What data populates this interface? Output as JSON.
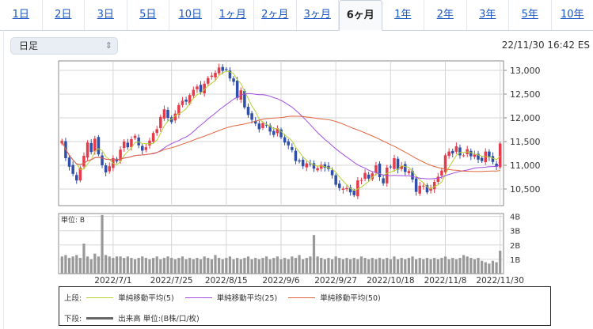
{
  "tabs": [
    {
      "label": "1日",
      "active": false
    },
    {
      "label": "2日",
      "active": false
    },
    {
      "label": "3日",
      "active": false
    },
    {
      "label": "5日",
      "active": false
    },
    {
      "label": "10日",
      "active": false
    },
    {
      "label": "1ヶ月",
      "active": false
    },
    {
      "label": "2ヶ月",
      "active": false
    },
    {
      "label": "3ヶ月",
      "active": false
    },
    {
      "label": "6ヶ月",
      "active": true
    },
    {
      "label": "1年",
      "active": false
    },
    {
      "label": "2年",
      "active": false
    },
    {
      "label": "3年",
      "active": false
    },
    {
      "label": "5年",
      "active": false
    },
    {
      "label": "10年",
      "active": false
    }
  ],
  "period_select": {
    "value": "日足"
  },
  "timestamp": "22/11/30 16:42 ES",
  "legend": {
    "upper_label": "上段:",
    "lower_label": "下段:",
    "ma5": "単純移動平均(5)",
    "ma25": "単純移動平均(25)",
    "ma50": "単純移動平均(50)",
    "volume": "出来高 単位:(B株/口/枚)"
  },
  "colors": {
    "up": "#e63b4a",
    "down": "#2f4fa8",
    "ma5": "#b7d232",
    "ma25": "#a34ee0",
    "ma50": "#e0663f",
    "volume": "#999999",
    "link": "#1a56c2"
  },
  "chart_data": [
    {
      "type": "candlestick",
      "price_ylim": [
        10150,
        13200
      ],
      "y_ticks": [
        "13,000",
        "12,500",
        "12,000",
        "11,500",
        "11,000",
        "10,500"
      ],
      "y_tick_values": [
        13000,
        12500,
        12000,
        11500,
        11000,
        10500
      ],
      "x_tick_labels": [
        "2022/7/1",
        "2022/7/25",
        "2022/8/15",
        "2022/9/6",
        "2022/9/27",
        "2022/10/18",
        "2022/11/8",
        "2022/11/30"
      ],
      "x_tick_index": [
        14,
        30,
        45,
        60,
        75,
        90,
        105,
        120
      ],
      "closes": [
        11520,
        11150,
        10970,
        10820,
        10680,
        10950,
        11200,
        11480,
        11280,
        11560,
        11230,
        11000,
        10850,
        10980,
        11150,
        11080,
        11330,
        11500,
        11380,
        11550,
        11620,
        11420,
        11310,
        11380,
        11520,
        11680,
        11760,
        12020,
        12180,
        12000,
        11910,
        12090,
        12270,
        12360,
        12340,
        12480,
        12590,
        12660,
        12540,
        12720,
        12840,
        12890,
        12950,
        13060,
        12990,
        13020,
        12830,
        12760,
        12420,
        12580,
        12220,
        12060,
        11960,
        11880,
        11760,
        11890,
        11850,
        11710,
        11640,
        11780,
        11590,
        11480,
        11420,
        11320,
        11090,
        11080,
        10980,
        11040,
        11020,
        10930,
        10940,
        11010,
        10950,
        10920,
        10790,
        10590,
        10520,
        10510,
        10520,
        10430,
        10370,
        10680,
        10690,
        10840,
        10720,
        10830,
        11000,
        10750,
        10620,
        10950,
        10960,
        11150,
        10910,
        10990,
        10860,
        10880,
        10700,
        10440,
        10570,
        10570,
        10430,
        10520,
        10650,
        10760,
        10890,
        11210,
        11290,
        11250,
        11400,
        11210,
        11210,
        11340,
        11190,
        11230,
        11120,
        11090,
        11290,
        11170,
        11070,
        10970,
        11460
      ],
      "volume_ylim": [
        0,
        4.2
      ],
      "volume_ticks": [
        "4B",
        "3B",
        "2B",
        "1B"
      ],
      "volume_tick_values": [
        4,
        3,
        2,
        1
      ],
      "volumes": [
        1.2,
        1.3,
        1.1,
        1.2,
        1.3,
        1.1,
        2.1,
        1.2,
        1.0,
        1.4,
        1.2,
        4.1,
        1.3,
        1.2,
        1.1,
        1.2,
        1.2,
        1.1,
        1.2,
        1.1,
        1.0,
        1.1,
        1.2,
        1.1,
        1.0,
        1.1,
        1.2,
        1.0,
        1.1,
        1.2,
        1.1,
        1.0,
        1.1,
        1.2,
        1.0,
        1.1,
        1.0,
        1.1,
        1.0,
        1.2,
        1.1,
        1.0,
        1.3,
        1.1,
        1.0,
        1.1,
        1.2,
        1.0,
        1.1,
        1.0,
        1.1,
        1.2,
        1.0,
        1.1,
        1.0,
        1.1,
        1.2,
        1.0,
        1.1,
        1.2,
        1.0,
        1.1,
        1.0,
        1.2,
        1.1,
        1.3,
        1.0,
        1.1,
        1.2,
        2.7,
        1.2,
        1.1,
        1.0,
        1.1,
        1.0,
        1.2,
        1.1,
        1.0,
        1.1,
        1.0,
        1.1,
        1.0,
        1.2,
        1.1,
        1.0,
        1.1,
        1.0,
        1.1,
        1.0,
        1.1,
        1.0,
        1.2,
        1.0,
        1.1,
        1.0,
        1.1,
        1.2,
        1.0,
        1.1,
        1.0,
        1.1,
        1.0,
        1.1,
        1.0,
        1.1,
        1.2,
        1.0,
        1.1,
        1.0,
        1.1,
        1.3,
        1.2,
        1.1,
        1.0,
        1.1,
        0.9,
        0.8,
        0.7,
        0.9,
        0.8,
        1.6
      ],
      "series": [
        {
          "name": "単純移動平均(5)",
          "period": 5
        },
        {
          "name": "単純移動平均(25)",
          "period": 25
        },
        {
          "name": "単純移動平均(50)",
          "period": 50
        }
      ]
    }
  ]
}
